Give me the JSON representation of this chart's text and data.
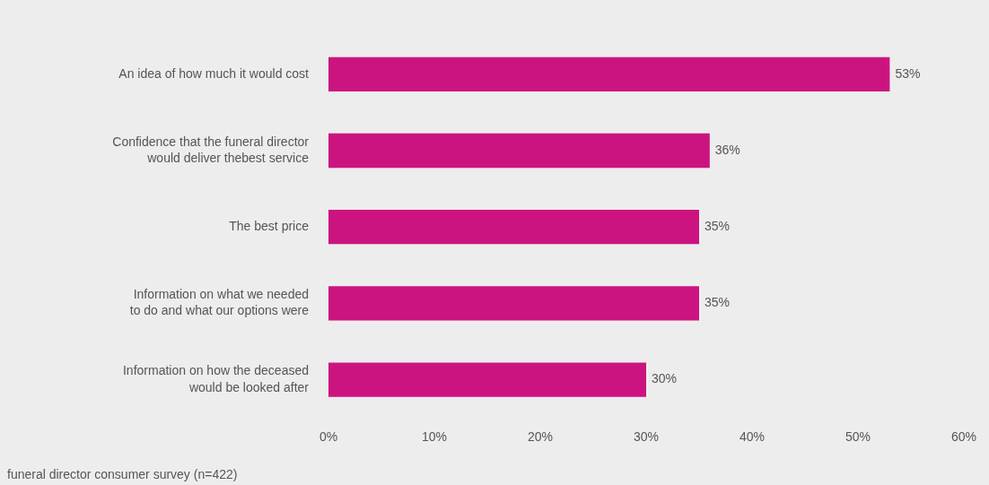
{
  "chart_data": {
    "type": "bar",
    "orientation": "horizontal",
    "categories": [
      "An idea of how much it would cost",
      "Confidence that the funeral director\nwould deliver thebest service",
      "The best price",
      "Information on what we needed\nto do and what our options were",
      "Information on how the deceased\nwould be looked after"
    ],
    "values": [
      53,
      36,
      35,
      35,
      30
    ],
    "value_labels": [
      "53%",
      "36%",
      "35%",
      "35%",
      "30%"
    ],
    "color": "#cc1480",
    "xlim": [
      0,
      60
    ],
    "xticks": [
      {
        "value": 0,
        "label": "0%"
      },
      {
        "value": 10,
        "label": "10%"
      },
      {
        "value": 20,
        "label": "20%"
      },
      {
        "value": 30,
        "label": "30%"
      },
      {
        "value": 40,
        "label": "40%"
      },
      {
        "value": 50,
        "label": "50%"
      },
      {
        "value": 60,
        "label": "60%"
      }
    ],
    "grid": false,
    "legend": false,
    "annotations": [
      "funeral director consumer survey (n=422)"
    ]
  }
}
